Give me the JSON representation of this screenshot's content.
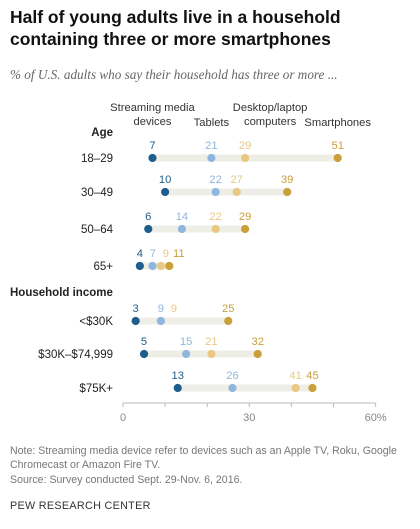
{
  "title": "Half of young adults live in a household containing three or more smartphones",
  "subtitle": "% of U.S. adults who say their household has three or more ...",
  "note": "Note: Streaming media device refer to devices such as an Apple TV, Roku, Google Chromecast or Amazon Fire TV.",
  "source": "Source: Survey conducted Sept. 29-Nov. 6, 2016.",
  "brand": "PEW RESEARCH CENTER",
  "colors": {
    "streaming": "#1f5e8c",
    "tablets": "#8fb6df",
    "desktop": "#e9c884",
    "smartphones": "#c9a03a",
    "track": "#eeeee6",
    "axis": "#bbbbbb"
  },
  "chart_data": {
    "type": "dot",
    "xlim": [
      0,
      60
    ],
    "x_ticks": [
      "0",
      "",
      "",
      "30",
      "",
      "",
      "60%"
    ],
    "series": [
      {
        "name": "Streaming media devices",
        "key": "streaming"
      },
      {
        "name": "Tablets",
        "key": "tablets"
      },
      {
        "name": "Desktop/laptop computers",
        "key": "desktop"
      },
      {
        "name": "Smartphones",
        "key": "smartphones"
      }
    ],
    "groups": [
      {
        "label": "Age",
        "rows": [
          {
            "label": "18–29",
            "values": [
              7,
              21,
              29,
              51
            ]
          },
          {
            "label": "30–49",
            "values": [
              10,
              22,
              27,
              39
            ]
          },
          {
            "label": "50–64",
            "values": [
              6,
              14,
              22,
              29
            ]
          },
          {
            "label": "65+",
            "values": [
              4,
              7,
              9,
              11
            ]
          }
        ]
      },
      {
        "label": "Household income",
        "rows": [
          {
            "label": "<$30K",
            "values": [
              3,
              9,
              9,
              25
            ]
          },
          {
            "label": "$30K–$74,999",
            "values": [
              5,
              15,
              21,
              32
            ]
          },
          {
            "label": "$75K+",
            "values": [
              13,
              26,
              41,
              45
            ]
          }
        ]
      }
    ]
  }
}
